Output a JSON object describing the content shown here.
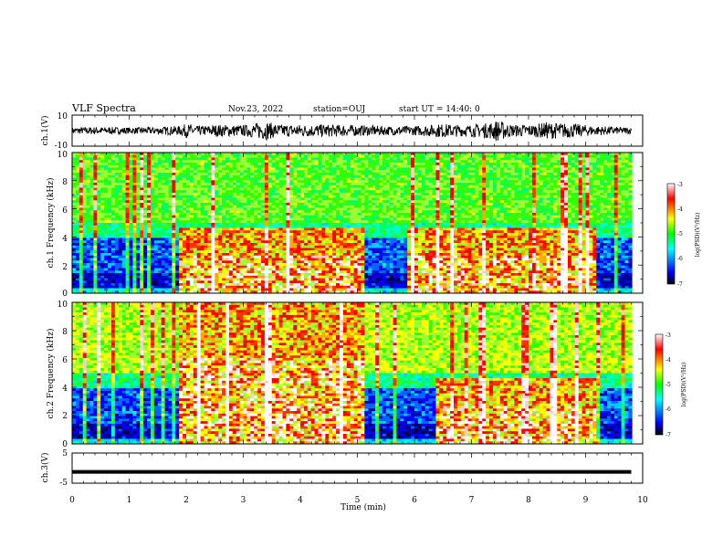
{
  "header": {
    "title": "VLF Spectra",
    "date": "Nov.23, 2022",
    "station": "station=OUJ",
    "start": "start UT = 14:40: 0"
  },
  "chart_data": [
    {
      "type": "line",
      "title": "",
      "ylabel": "ch.1(V)",
      "ylim": [
        -10,
        10
      ],
      "yticks": [
        "10",
        "-10"
      ],
      "xlim": [
        0,
        10
      ],
      "series": [
        {
          "envelope": {
            "x": [
              0,
              0.4,
              1.1,
              1.9,
              2.0,
              2.2,
              2.6,
              3.0,
              3.4,
              3.6,
              4.0,
              4.5,
              5.0,
              5.5,
              6.0,
              6.5,
              6.9,
              7.3,
              7.45,
              7.7,
              8.1,
              8.3,
              8.6,
              8.9,
              9.2,
              9.8
            ],
            "amp": [
              2,
              2.5,
              2,
              3,
              4.5,
              3,
              4,
              3.5,
              6,
              4,
              4,
              4,
              3.5,
              3,
              3,
              4.5,
              3.5,
              5,
              7,
              4,
              4,
              5.5,
              5,
              4,
              3,
              2
            ]
          }
        }
      ]
    },
    {
      "type": "heatmap",
      "title": "",
      "ylabel": "ch.1 Frequency (kHz)",
      "ylim": [
        0,
        10
      ],
      "xlim": [
        0,
        10
      ],
      "yticks": [
        "0",
        "2",
        "4",
        "6",
        "8",
        "10"
      ],
      "colorbar": {
        "label": "log(PSD)(V²/Hz)",
        "range": [
          -7,
          -3
        ],
        "ticks": [
          "-3",
          "-4",
          "-5",
          "-6",
          "-7"
        ]
      },
      "features": [
        {
          "t_start": 1.85,
          "t_end": 5.1,
          "f_top_khz": 4.6,
          "intensity": "high"
        },
        {
          "t_start": 5.9,
          "t_end": 9.2,
          "f_top_khz": 4.6,
          "intensity": "high"
        }
      ]
    },
    {
      "type": "heatmap",
      "title": "",
      "ylabel": "ch.2 Frequency (kHz)",
      "ylim": [
        0,
        10
      ],
      "xlim": [
        0,
        10
      ],
      "yticks": [
        "0",
        "2",
        "4",
        "6",
        "8",
        "10"
      ],
      "colorbar": {
        "label": "log(PSD)(V²/Hz)",
        "range": [
          -7,
          -3
        ],
        "ticks": [
          "-3",
          "-4",
          "-5",
          "-6",
          "-7"
        ]
      },
      "features": [
        {
          "t_start": 1.85,
          "t_end": 5.1,
          "f_top_khz": 10,
          "intensity": "high"
        },
        {
          "t_start": 6.4,
          "t_end": 9.2,
          "f_top_khz": 4.6,
          "intensity": "high"
        }
      ]
    },
    {
      "type": "line",
      "title": "",
      "ylabel": "ch.3(V)",
      "ylim": [
        -5,
        5
      ],
      "yticks": [
        "5",
        "-5"
      ],
      "xlim": [
        0,
        10
      ],
      "xlabel": "Time (min)",
      "xticks": [
        "0",
        "1",
        "2",
        "3",
        "4",
        "5",
        "6",
        "7",
        "8",
        "9",
        "10"
      ],
      "series": [
        {
          "x": [
            0,
            9.8
          ],
          "values": [
            -1.3,
            -1.3
          ]
        }
      ]
    }
  ],
  "colors": {
    "cmap": [
      "#000066",
      "#0000ff",
      "#00ffff",
      "#00ff00",
      "#ffff00",
      "#ff0000",
      "#ffffff"
    ]
  }
}
